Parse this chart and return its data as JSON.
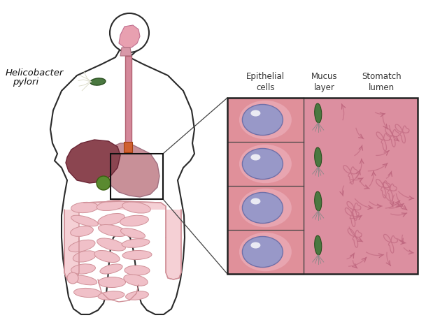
{
  "bg_color": "#ffffff",
  "line_color": "#2a2a2a",
  "body_fill": "#ffffff",
  "esophagus_fill": "#d4889a",
  "esophagus_edge": "#b06070",
  "stomach_fill": "#c8888f",
  "stomach_edge": "#a06070",
  "liver_fill": "#8B4555",
  "liver_edge": "#6B2535",
  "gallbladder_fill": "#5a8a30",
  "intestine_fill": "#f0c0c8",
  "intestine_edge": "#d090a0",
  "pink_bg": "#dc8fa0",
  "pink_mid": "#d888a0",
  "cell_fill": "#9090c0",
  "cell_edge": "#7070a0",
  "bacteria_fill": "#4a7840",
  "bacteria_edge": "#2a5020",
  "flagella_color": "#aaaaaa",
  "lumen_wave_color": "#c06080",
  "zoom_border": "#222222",
  "zoom_line_color": "#444444",
  "label_helicobacter": "Helicobacter",
  "label_pylori": "pylori",
  "label_epithelial": "Epithelial\ncells",
  "label_mucus": "Mucus\nlayer",
  "label_stomach": "Stomatch\nlumen",
  "label_fontsize": 9.5,
  "small_fontsize": 8.5
}
